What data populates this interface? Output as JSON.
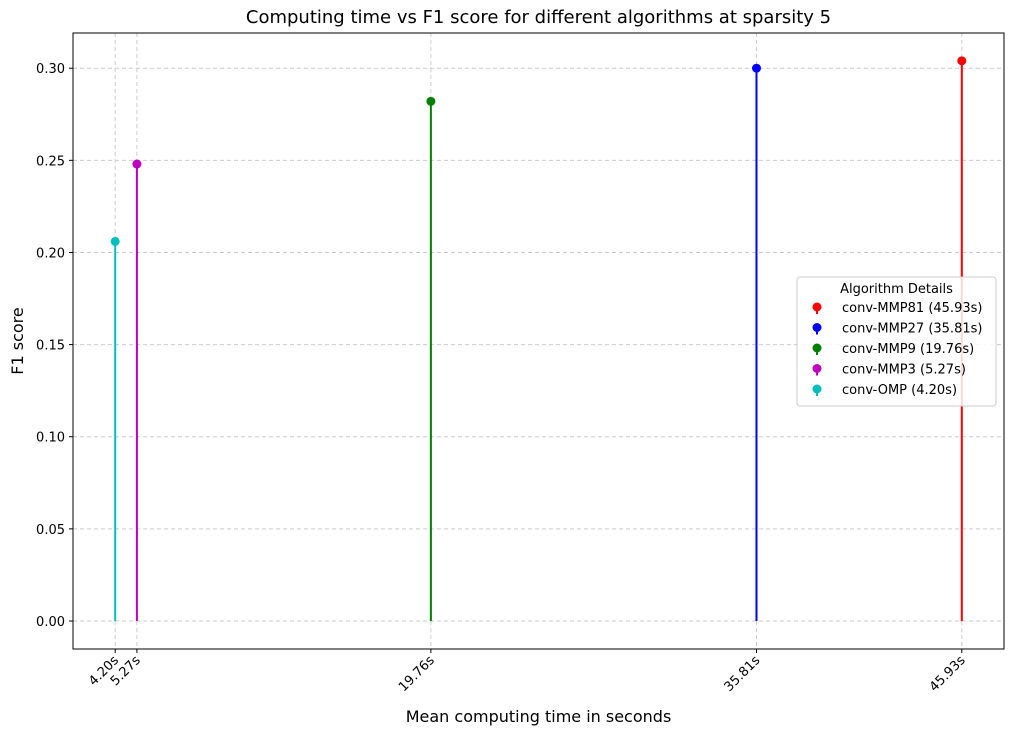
{
  "chart_data": {
    "type": "stem",
    "title": "Computing time vs F1 score for different algorithms at sparsity 5",
    "xlabel": "Mean computing time in seconds",
    "ylabel": "F1 score",
    "xlim": [
      2.12,
      48.01
    ],
    "ylim": [
      -0.0152,
      0.3191
    ],
    "x_ticks": [
      4.2,
      5.27,
      19.76,
      35.81,
      45.93
    ],
    "x_tick_labels": [
      "4.20s",
      "5.27s",
      "19.76s",
      "35.81s",
      "45.93s"
    ],
    "y_ticks": [
      0.0,
      0.05,
      0.1,
      0.15,
      0.2,
      0.25,
      0.3
    ],
    "y_tick_labels": [
      "0.00",
      "0.05",
      "0.10",
      "0.15",
      "0.20",
      "0.25",
      "0.30"
    ],
    "grid": true,
    "legend_title": "Algorithm Details",
    "legend_placement": "center-right",
    "series": [
      {
        "name": "conv-MMP81 (45.93s)",
        "x": 45.93,
        "y": 0.304,
        "color": "#ff0000"
      },
      {
        "name": "conv-MMP27 (35.81s)",
        "x": 35.81,
        "y": 0.3,
        "color": "#0000ff"
      },
      {
        "name": "conv-MMP9 (19.76s)",
        "x": 19.76,
        "y": 0.282,
        "color": "#008000"
      },
      {
        "name": "conv-MMP3 (5.27s)",
        "x": 5.27,
        "y": 0.248,
        "color": "#bf00bf"
      },
      {
        "name": "conv-OMP (4.20s)",
        "x": 4.2,
        "y": 0.206,
        "color": "#00bfbf"
      }
    ]
  }
}
